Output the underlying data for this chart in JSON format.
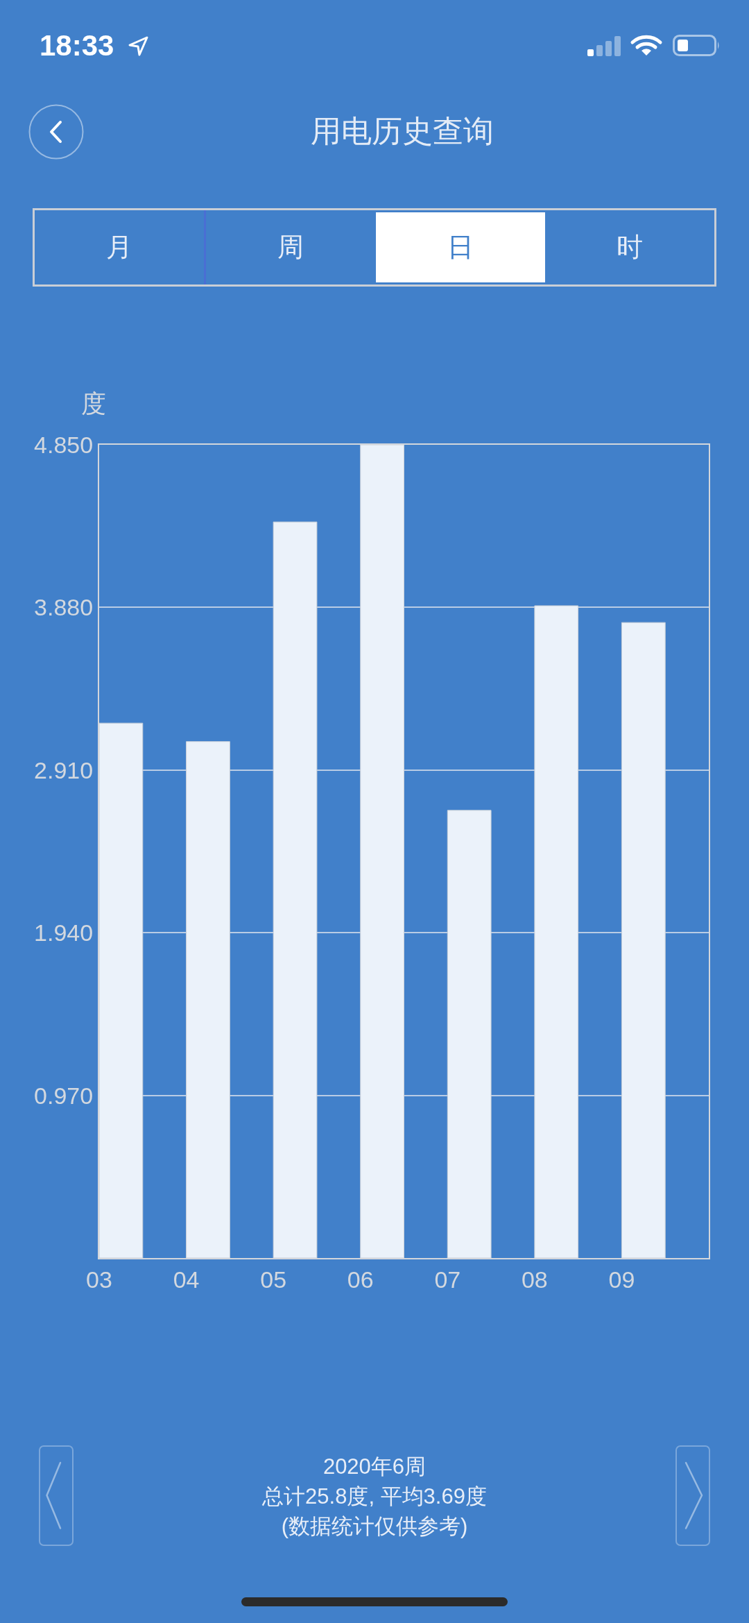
{
  "chart_data": {
    "type": "bar",
    "title": "用电历史查询",
    "ylabel": "度",
    "categories": [
      "03",
      "04",
      "05",
      "06",
      "07",
      "08",
      "09"
    ],
    "values": [
      3.19,
      3.08,
      4.39,
      4.85,
      2.67,
      3.89,
      3.79
    ],
    "color": "#ebf2fa",
    "ylim": [
      0,
      4.85
    ],
    "yticks": [
      {
        "value": 0.97,
        "label": "0.970"
      },
      {
        "value": 1.94,
        "label": "1.940"
      },
      {
        "value": 2.91,
        "label": "2.910"
      },
      {
        "value": 3.88,
        "label": "3.880"
      },
      {
        "value": 4.85,
        "label": "4.850"
      }
    ],
    "grid": "y",
    "annotations": [
      "18:33",
      "月",
      "周",
      "日",
      "时",
      "2020年6周",
      "总计25.8度, 平均3.69度",
      "(数据统计仅供参考)"
    ]
  }
}
